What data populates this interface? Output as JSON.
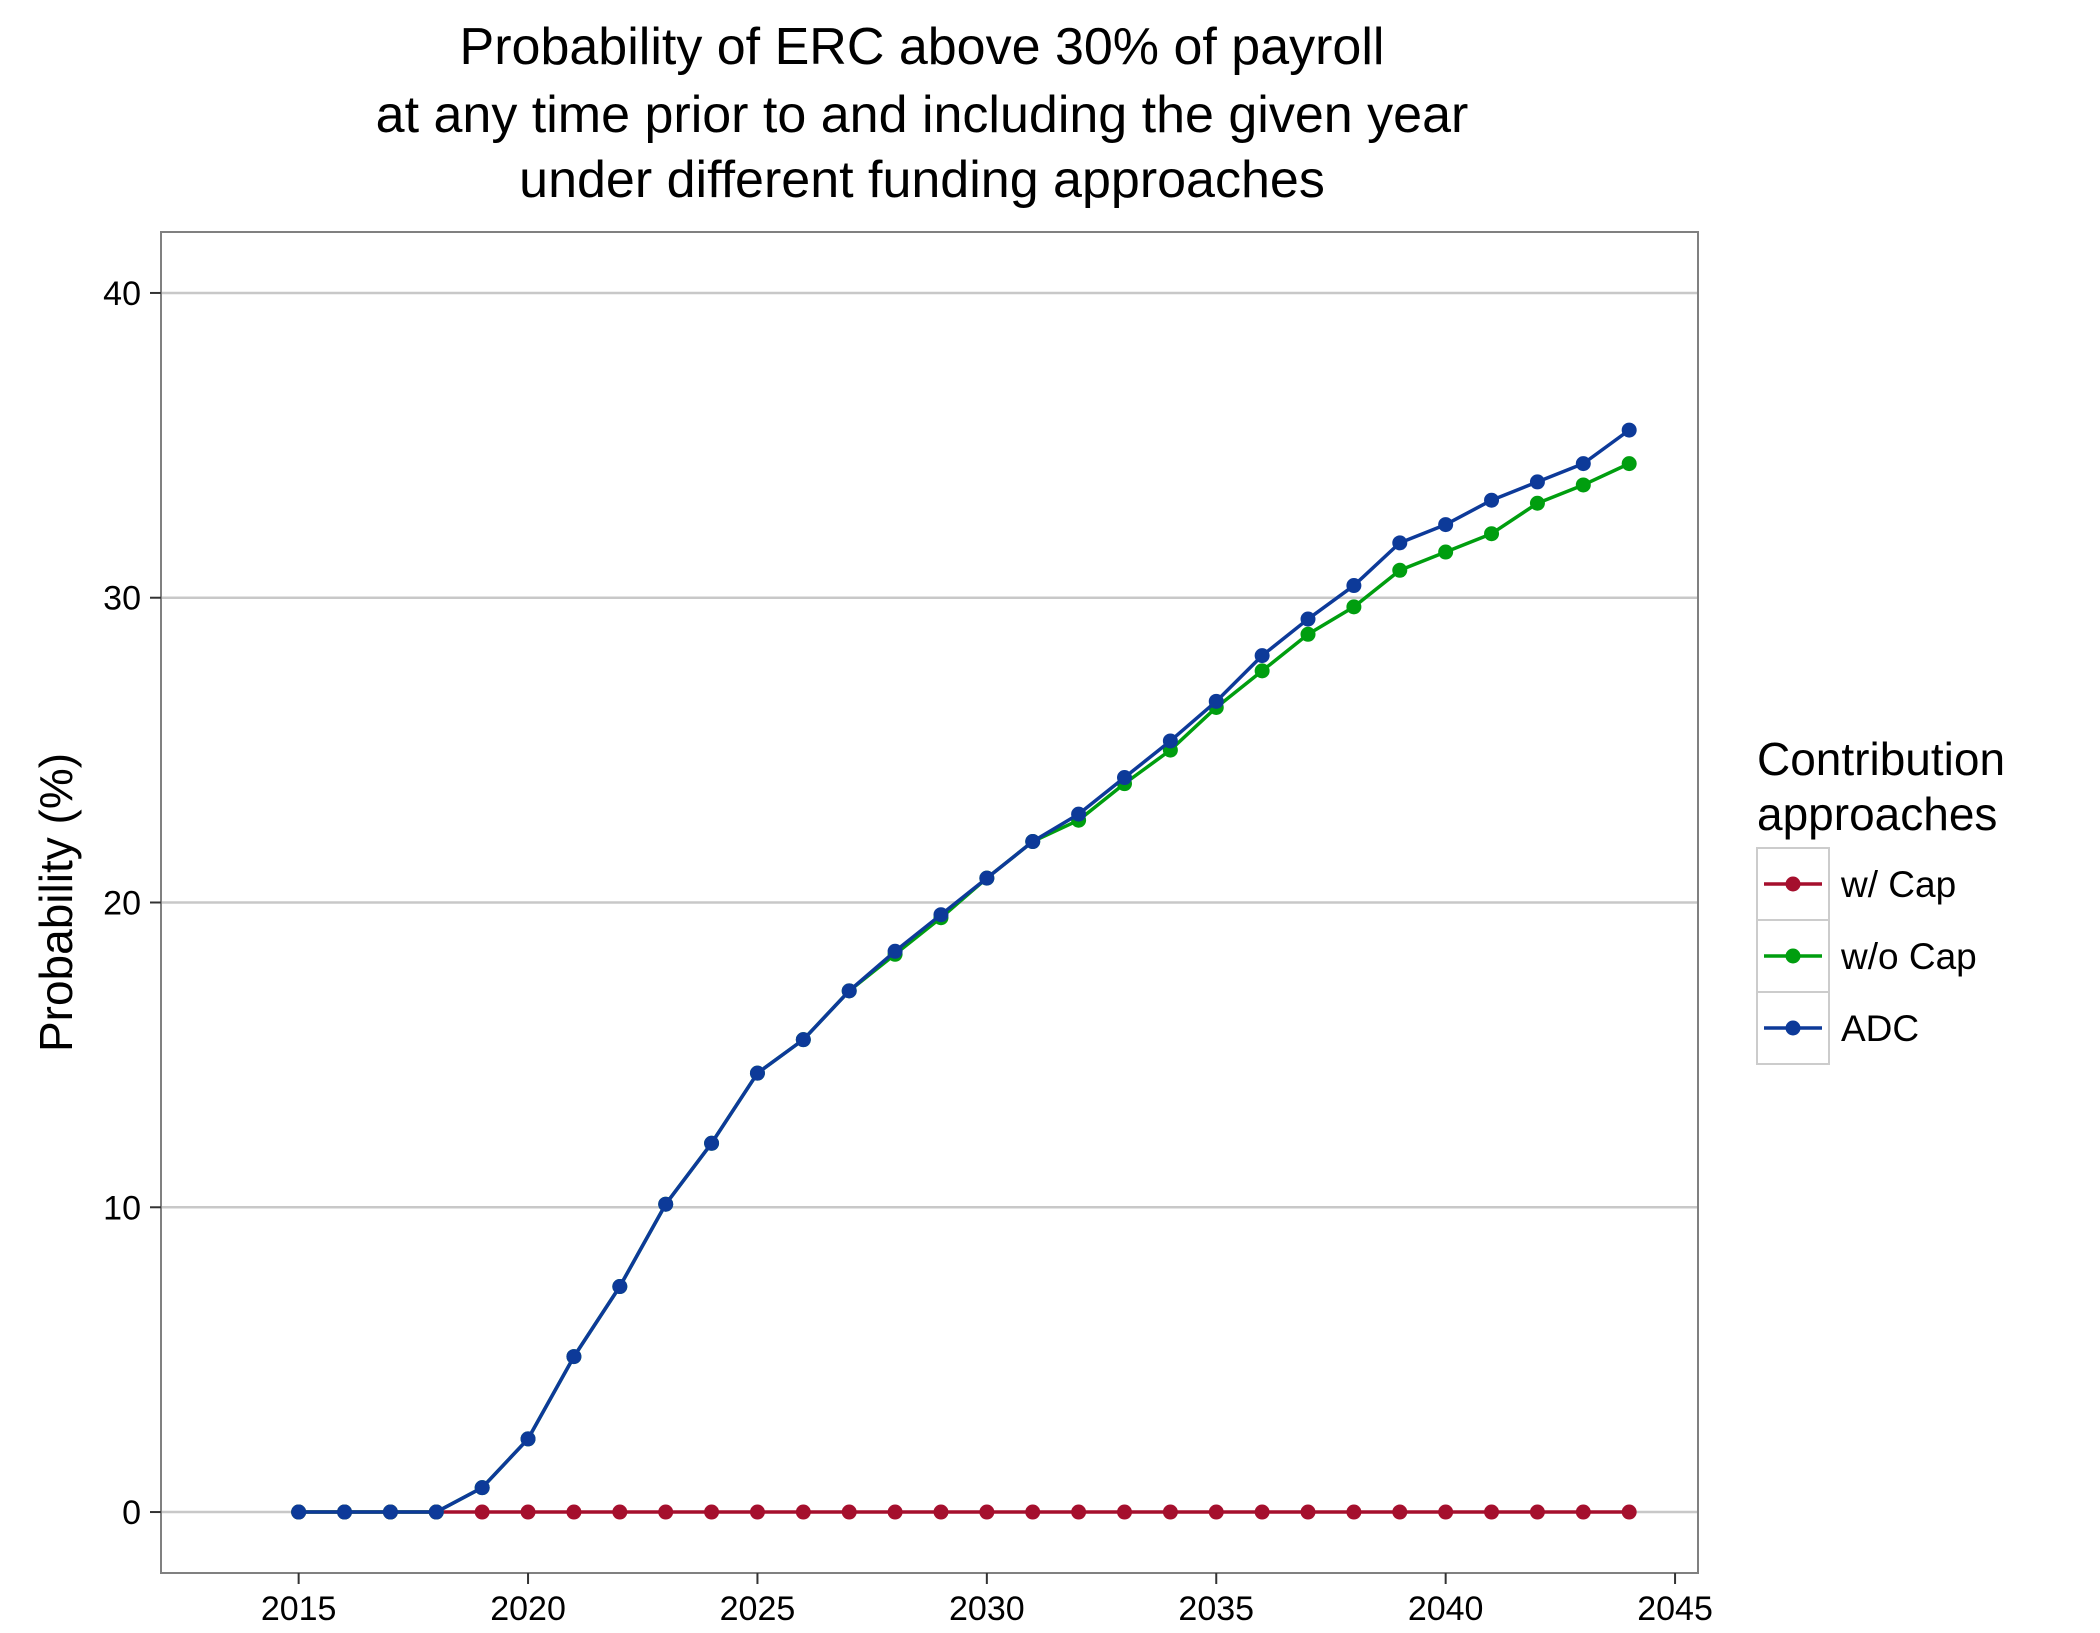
{
  "chart_data": {
    "type": "line",
    "title_lines": [
      "Probability of ERC above 30% of payroll",
      "at any time prior to and including the given year",
      "under different funding approaches"
    ],
    "xlabel": "",
    "ylabel": "Probability (%)",
    "xlim": [
      2012,
      2045.5
    ],
    "ylim": [
      -2,
      42
    ],
    "x_ticks": [
      2015,
      2020,
      2025,
      2030,
      2035,
      2040,
      2045
    ],
    "y_ticks": [
      0,
      10,
      20,
      30,
      40
    ],
    "grid": "horizontal",
    "legend": {
      "title_lines": [
        "Contribution",
        "approaches"
      ],
      "placement": "right"
    },
    "x": [
      2015,
      2016,
      2017,
      2018,
      2019,
      2020,
      2021,
      2022,
      2023,
      2024,
      2025,
      2026,
      2027,
      2028,
      2029,
      2030,
      2031,
      2032,
      2033,
      2034,
      2035,
      2036,
      2037,
      2038,
      2039,
      2040,
      2041,
      2042,
      2043,
      2044
    ],
    "series": [
      {
        "name": "w/ Cap",
        "color": "#A50F2D",
        "values": [
          0,
          0,
          0,
          0,
          0,
          0,
          0,
          0,
          0,
          0,
          0,
          0,
          0,
          0,
          0,
          0,
          0,
          0,
          0,
          0,
          0,
          0,
          0,
          0,
          0,
          0,
          0,
          0,
          0,
          0
        ]
      },
      {
        "name": "w/o Cap",
        "color": "#009E0F",
        "values": [
          0,
          0,
          0,
          0,
          0.8,
          2.4,
          5.1,
          7.4,
          10.1,
          12.1,
          14.4,
          15.5,
          17.1,
          18.3,
          19.5,
          20.8,
          22.0,
          22.7,
          23.9,
          25.0,
          26.4,
          27.6,
          28.8,
          29.7,
          30.9,
          31.5,
          32.1,
          33.1,
          33.7,
          34.4
        ]
      },
      {
        "name": "ADC",
        "color": "#0D3A99",
        "values": [
          0,
          0,
          0,
          0,
          0.8,
          2.4,
          5.1,
          7.4,
          10.1,
          12.1,
          14.4,
          15.5,
          17.1,
          18.4,
          19.6,
          20.8,
          22.0,
          22.9,
          24.1,
          25.3,
          26.6,
          28.1,
          29.3,
          30.4,
          31.8,
          32.4,
          33.2,
          33.8,
          34.4,
          35.5
        ]
      }
    ]
  },
  "colors": {
    "grid": "#C8C8C8",
    "panel_border": "#808080",
    "tick": "#333333",
    "legend_border": "#CCCCCC"
  }
}
